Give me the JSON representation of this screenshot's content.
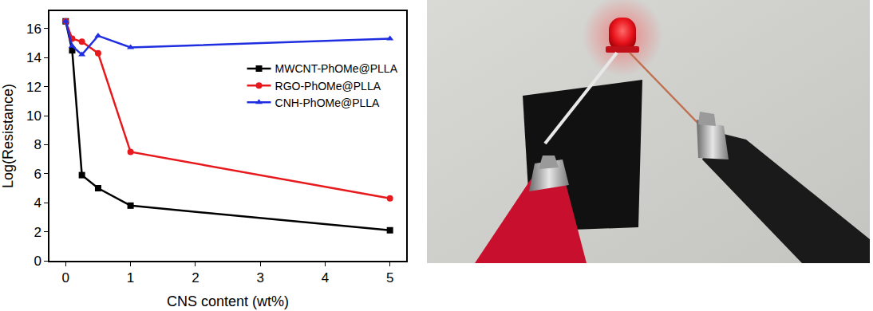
{
  "chart_data": {
    "type": "line",
    "xlabel": "CNS content (wt%)",
    "ylabel": "Log(Resistance)",
    "x": [
      0,
      0.1,
      0.25,
      0.5,
      1,
      5
    ],
    "series": [
      {
        "name": "MWCNT-PhOMe@PLLA",
        "color": "#000000",
        "marker": "square",
        "line_style": "solid",
        "values": [
          16.5,
          14.5,
          5.9,
          5.0,
          3.8,
          2.1
        ]
      },
      {
        "name": "RGO-PhOMe@PLLA",
        "color": "#e8191c",
        "marker": "circle",
        "line_style": "solid",
        "values": [
          16.5,
          15.3,
          15.1,
          14.3,
          7.5,
          4.3
        ]
      },
      {
        "name": "CNH-PhOMe@PLLA",
        "color": "#1f2ee0",
        "marker": "triangle-up",
        "line_style": "solid",
        "values": [
          16.5,
          14.8,
          14.2,
          15.5,
          14.7,
          15.3
        ]
      }
    ],
    "xlim": [
      -0.25,
      5.25
    ],
    "ylim": [
      0,
      17.2
    ],
    "xticks": [
      0,
      1,
      2,
      3,
      4,
      5
    ],
    "yticks": [
      0,
      2,
      4,
      6,
      8,
      10,
      12,
      14,
      16
    ],
    "legend": "upper right",
    "grid": false
  }
}
